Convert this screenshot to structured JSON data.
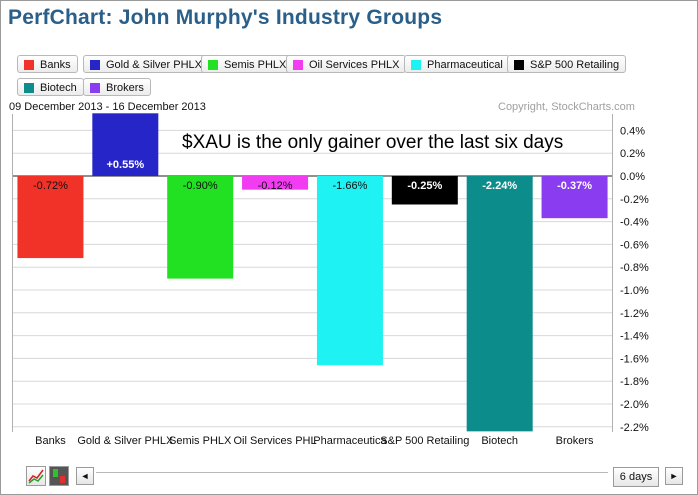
{
  "title": "PerfChart: John Murphy's Industry Groups",
  "date_range": "09 December 2013 - 16 December 2013",
  "copyright": "Copyright, StockCharts.com",
  "annotation": "$XAU is the only gainer over the last six days",
  "legend": [
    {
      "label": "Banks",
      "color": "#f03228"
    },
    {
      "label": "Gold & Silver PHLX",
      "color": "#2626c8"
    },
    {
      "label": "Semis PHLX",
      "color": "#22e022"
    },
    {
      "label": "Oil Services PHLX",
      "color": "#f23cf2"
    },
    {
      "label": "Pharmaceutical",
      "color": "#1ef2f2"
    },
    {
      "label": "S&P 500 Retailing",
      "color": "#000000"
    },
    {
      "label": "Biotech",
      "color": "#0d8c8c"
    },
    {
      "label": "Brokers",
      "color": "#8a3cf0"
    }
  ],
  "chart_data": {
    "type": "bar",
    "categories": [
      "Banks",
      "Gold & Silver PHLX",
      "Semis PHLX",
      "Oil Services PHLX",
      "Pharmaceutical",
      "S&P 500 Retailing",
      "Biotech",
      "Brokers"
    ],
    "values": [
      -0.72,
      0.55,
      -0.9,
      -0.12,
      -1.66,
      -0.25,
      -2.24,
      -0.37
    ],
    "value_labels": [
      "-0.72%",
      "+0.55%",
      "-0.90%",
      "-0.12%",
      "-1.66%",
      "-0.25%",
      "-2.24%",
      "-0.37%"
    ],
    "colors": [
      "#f03228",
      "#2626c8",
      "#22e022",
      "#f23cf2",
      "#1ef2f2",
      "#000000",
      "#0d8c8c",
      "#8a3cf0"
    ],
    "ylim": [
      -2.3,
      0.55
    ],
    "yticks": [
      0.4,
      0.2,
      0.0,
      -0.2,
      -0.4,
      -0.6,
      -0.8,
      -1.0,
      -1.2,
      -1.4,
      -1.6,
      -1.8,
      -2.0,
      -2.2
    ],
    "ytick_labels": [
      "0.4%",
      "0.2%",
      "0.0%",
      "-0.2%",
      "-0.4%",
      "-0.6%",
      "-0.8%",
      "-1.0%",
      "-1.2%",
      "-1.4%",
      "-1.6%",
      "-1.8%",
      "-2.0%",
      "-2.2%"
    ],
    "xtick_labels": [
      "Banks",
      "Gold & Silver PHLX",
      "Semis PHLX",
      "Oil Services PHL",
      "Pharmaceutica",
      "S&P 500 Retailing",
      "Biotech",
      "Brokers"
    ],
    "grid": true,
    "legend_position": "top"
  },
  "controls": {
    "period_label": "6 days",
    "prev_arrow": "◄",
    "next_arrow": "►"
  }
}
